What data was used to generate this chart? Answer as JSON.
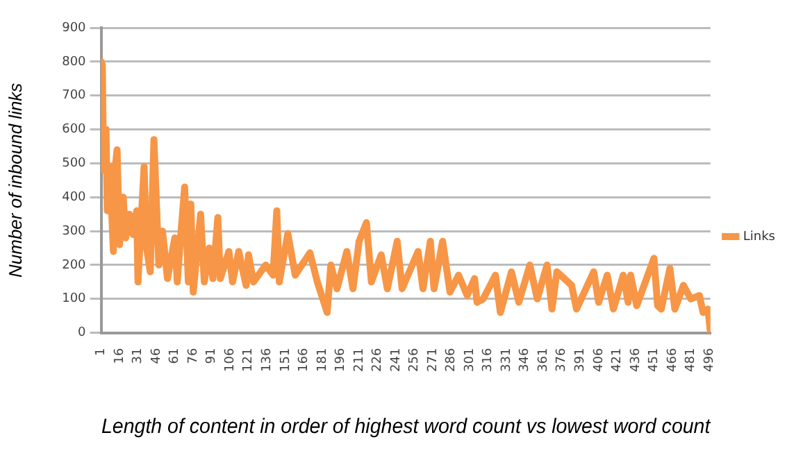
{
  "chart_data": {
    "type": "line",
    "xlabel": "Length of content in order of highest word count vs lowest word count",
    "ylabel": "Number of inbound links",
    "xlim": [
      1,
      497
    ],
    "xticks": [
      1,
      16,
      31,
      46,
      61,
      76,
      91,
      106,
      121,
      136,
      151,
      166,
      181,
      196,
      211,
      226,
      241,
      256,
      271,
      286,
      301,
      316,
      331,
      346,
      361,
      376,
      391,
      406,
      421,
      436,
      451,
      466,
      481,
      496
    ],
    "ylim": [
      0,
      900
    ],
    "yticks": [
      0,
      100,
      200,
      300,
      400,
      500,
      600,
      700,
      800,
      900
    ],
    "grid": "y",
    "legend": "right",
    "series": [
      {
        "name": "Links",
        "color": "#f79646",
        "x": [
          1,
          2,
          3,
          5,
          6,
          8,
          11,
          12,
          14,
          16,
          19,
          21,
          24,
          27,
          30,
          31,
          36,
          38,
          41,
          44,
          48,
          51,
          55,
          61,
          63,
          65,
          69,
          72,
          74,
          76,
          82,
          85,
          89,
          92,
          96,
          98,
          105,
          108,
          113,
          119,
          121,
          125,
          135,
          141,
          144,
          146,
          153,
          159,
          171,
          177,
          185,
          188,
          193,
          201,
          206,
          211,
          217,
          221,
          229,
          234,
          242,
          246,
          259,
          263,
          269,
          272,
          279,
          285,
          292,
          299,
          305,
          307,
          312,
          322,
          326,
          335,
          341,
          350,
          356,
          364,
          368,
          372,
          384,
          388,
          402,
          406,
          413,
          418,
          426,
          430,
          432,
          437,
          451,
          454,
          457,
          464,
          468,
          475,
          481,
          488,
          491,
          495,
          497
        ],
        "values": [
          800,
          790,
          480,
          600,
          360,
          490,
          240,
          470,
          540,
          260,
          400,
          280,
          350,
          290,
          360,
          150,
          490,
          250,
          180,
          570,
          200,
          300,
          160,
          280,
          150,
          250,
          430,
          150,
          380,
          120,
          350,
          150,
          250,
          160,
          340,
          160,
          240,
          150,
          240,
          140,
          230,
          150,
          200,
          170,
          360,
          150,
          293,
          170,
          236,
          150,
          60,
          200,
          130,
          240,
          130,
          270,
          325,
          150,
          230,
          130,
          270,
          130,
          240,
          130,
          270,
          130,
          270,
          120,
          170,
          110,
          160,
          90,
          100,
          170,
          60,
          180,
          90,
          200,
          100,
          200,
          70,
          180,
          140,
          70,
          180,
          90,
          170,
          70,
          170,
          90,
          170,
          80,
          220,
          80,
          70,
          190,
          70,
          140,
          100,
          110,
          60,
          70,
          0
        ]
      }
    ]
  }
}
